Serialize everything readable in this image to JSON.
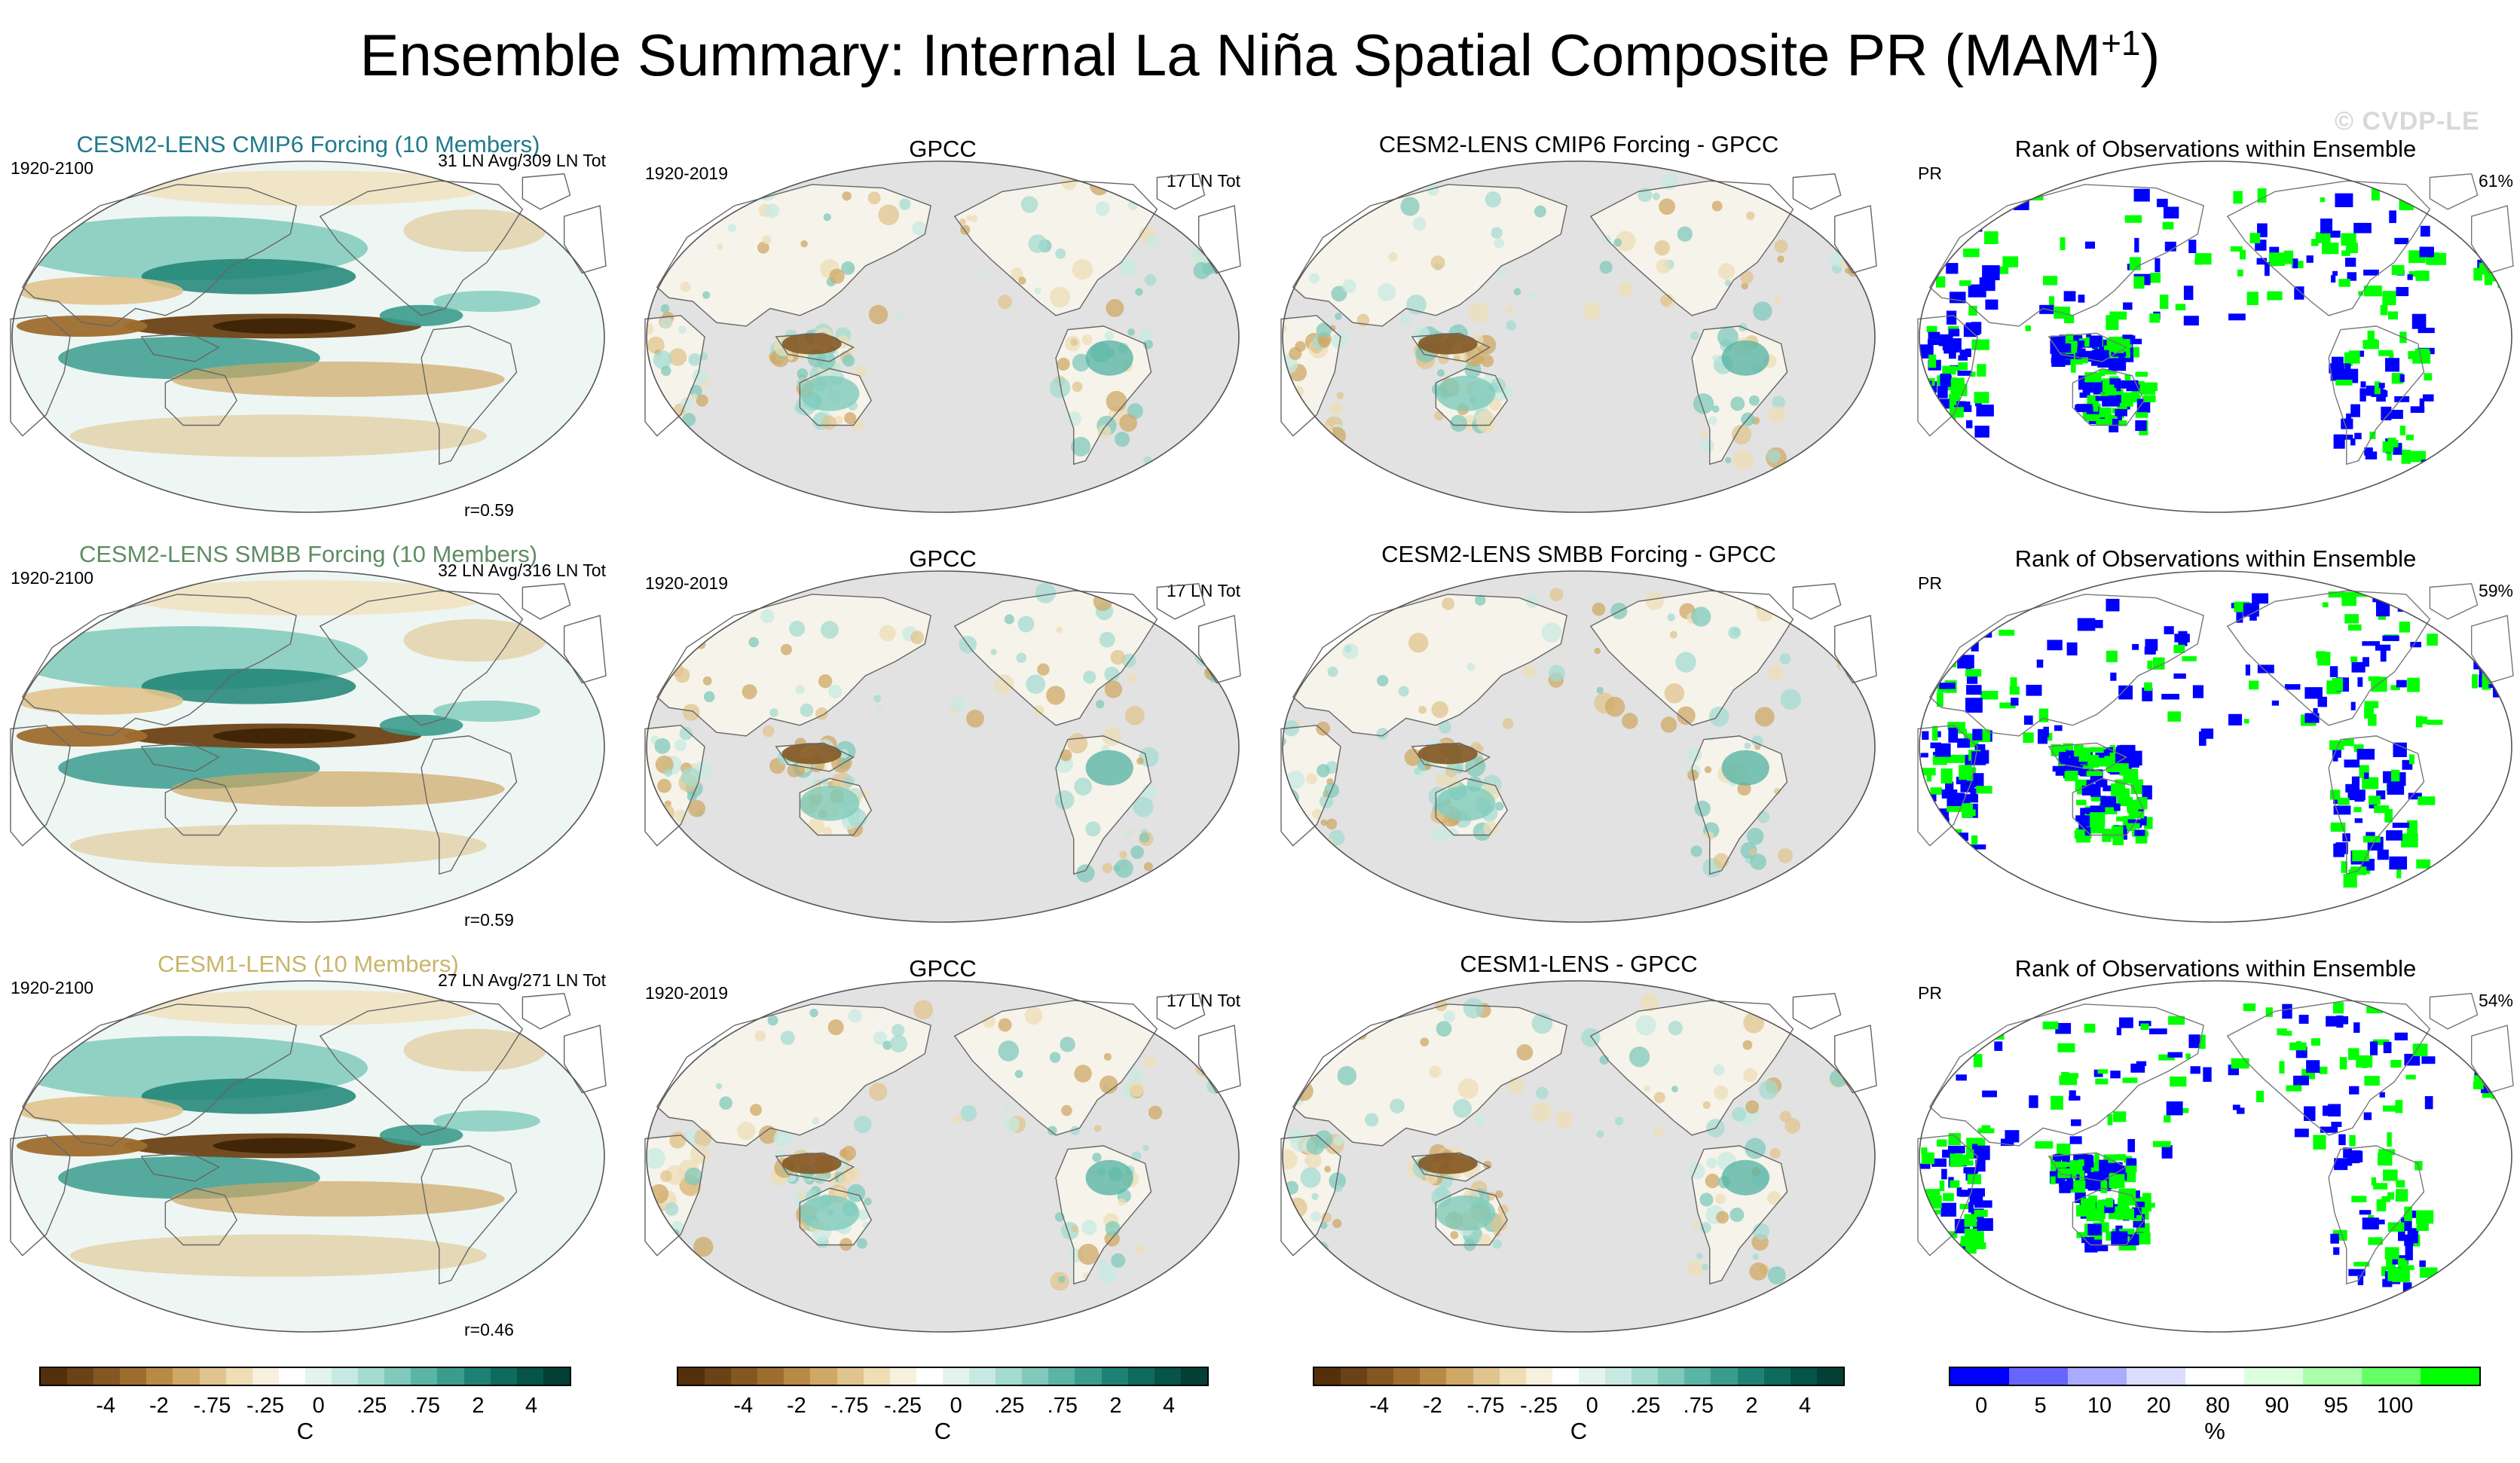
{
  "title": "Ensemble Summary: Internal La Niña Spatial Composite PR (MAM",
  "title_sup": "+1",
  "title_end": ")",
  "watermark": "© CVDP-LE",
  "rows": [
    {
      "model_title": "CESM2-LENS CMIP6 Forcing (10 Members)",
      "model_title_color": "#1f7a8c",
      "model_period": "1920-2100",
      "model_counts": "31 LN Avg/309 LN Tot",
      "model_r": "r=0.59",
      "obs_title": "GPCC",
      "obs_period": "1920-2019",
      "obs_counts": "17 LN Tot",
      "diff_title": "CESM2-LENS CMIP6 Forcing - GPCC",
      "rank_title": "Rank of Observations within Ensemble",
      "rank_var": "PR",
      "rank_pct": "61%"
    },
    {
      "model_title": "CESM2-LENS SMBB Forcing (10 Members)",
      "model_title_color": "#5f8c64",
      "model_period": "1920-2100",
      "model_counts": "32 LN Avg/316 LN Tot",
      "model_r": "r=0.59",
      "obs_title": "GPCC",
      "obs_period": "1920-2019",
      "obs_counts": "17 LN Tot",
      "diff_title": "CESM2-LENS SMBB Forcing - GPCC",
      "rank_title": "Rank of Observations within Ensemble",
      "rank_var": "PR",
      "rank_pct": "59%"
    },
    {
      "model_title": "CESM1-LENS (10 Members)",
      "model_title_color": "#c9b56a",
      "model_period": "1920-2100",
      "model_counts": "27 LN Avg/271 LN Tot",
      "model_r": "r=0.46",
      "obs_title": "GPCC",
      "obs_period": "1920-2019",
      "obs_counts": "17 LN Tot",
      "diff_title": "CESM1-LENS - GPCC",
      "rank_title": "Rank of Observations within Ensemble",
      "rank_var": "PR",
      "rank_pct": "54%"
    }
  ],
  "colors": {
    "brown_dark": "#6b4a1c",
    "teal_dark": "#0d4d40",
    "land_gray": "#e2e2e2",
    "ocean_white": "#ffffff",
    "rank_blue": "#0000ff",
    "rank_green": "#00ff00"
  },
  "chart_data": {
    "type": "heatmap",
    "projection": "Robinson (Pacific-centered)",
    "diverging_colorbar": {
      "unit": "C",
      "tick_labels": [
        "-4",
        "-2",
        "-.75",
        "-.25",
        "0",
        ".25",
        ".75",
        "2",
        "4"
      ],
      "colors": [
        "#54300a",
        "#6b4216",
        "#845622",
        "#9e6d2e",
        "#b88a45",
        "#cfa865",
        "#e0c48d",
        "#eeddb5",
        "#f7f0de",
        "#ffffff",
        "#e3f3ef",
        "#c7e9e1",
        "#a4dbd0",
        "#7fcabb",
        "#5ab5a6",
        "#3a9c8d",
        "#1d8274",
        "#0d6a5d",
        "#065447",
        "#033f35"
      ]
    },
    "rank_colorbar": {
      "unit": "%",
      "tick_labels": [
        "0",
        "5",
        "10",
        "20",
        "80",
        "90",
        "95",
        "100"
      ],
      "colors": [
        "#0000ff",
        "#6666ff",
        "#aaaaff",
        "#dcdcff",
        "#ffffff",
        "#ddffdd",
        "#aaffaa",
        "#66ff66",
        "#00ff00"
      ]
    }
  }
}
